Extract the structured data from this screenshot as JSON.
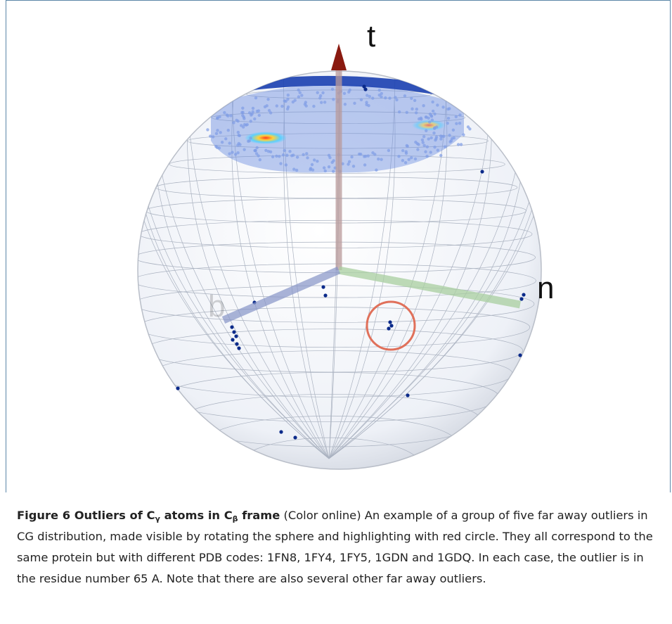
{
  "figure": {
    "axes": {
      "t": "t",
      "n": "n",
      "b": "b"
    },
    "caption": {
      "label": "Figure 6",
      "title": [
        "Outliers of C",
        "γ",
        " atoms in C",
        "β",
        " frame"
      ],
      "body": "(Color online) An example of a group of five far away outliers in CG distribution, made visible by rotating the sphere and highlighting with red circle. They all correspond to the same protein but with different PDB codes: 1FN8, 1FY4, 1FY5, 1GDN and 1GDQ. In each case, the outlier is in the residue number 65 A. Note that there are also several other far away outliers."
    }
  }
}
